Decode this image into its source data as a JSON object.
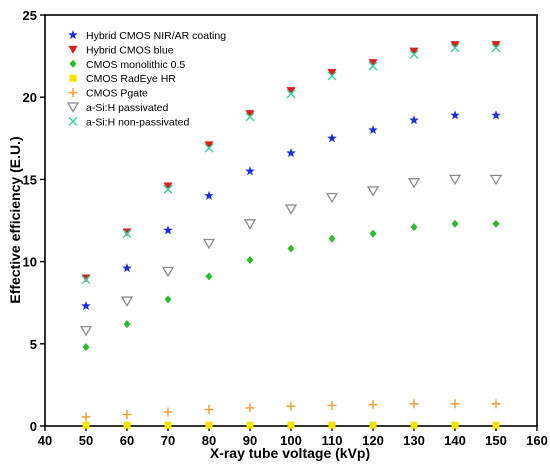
{
  "chart_data": {
    "type": "scatter",
    "title": "",
    "xlabel": "X-ray tube voltage (kVp)",
    "ylabel": "Effective efficiency (E.U.)",
    "xlim": [
      40,
      160
    ],
    "ylim": [
      0,
      25
    ],
    "xticks": [
      40,
      50,
      60,
      70,
      80,
      90,
      100,
      110,
      120,
      130,
      140,
      150,
      160
    ],
    "yticks": [
      0,
      5,
      10,
      15,
      20,
      25
    ],
    "grid": false,
    "legend_position": "top-left",
    "x": [
      50,
      60,
      70,
      80,
      90,
      100,
      110,
      120,
      130,
      140,
      150
    ],
    "series": [
      {
        "name": "Hybrid CMOS NIR/AR coating",
        "marker": "star",
        "color": "#1f2fd6",
        "values": [
          7.3,
          9.6,
          11.9,
          14.0,
          15.5,
          16.6,
          17.5,
          18.0,
          18.6,
          18.9,
          18.9
        ]
      },
      {
        "name": "Hybrid CMOS blue",
        "marker": "triangle-down",
        "color": "#d92020",
        "values": [
          9.0,
          11.8,
          14.6,
          17.1,
          19.0,
          20.4,
          21.5,
          22.1,
          22.8,
          23.2,
          23.2
        ]
      },
      {
        "name": "CMOS monolithic 0.5",
        "marker": "diamond",
        "color": "#2db82d",
        "values": [
          4.8,
          6.2,
          7.7,
          9.1,
          10.1,
          10.8,
          11.4,
          11.7,
          12.1,
          12.3,
          12.3
        ]
      },
      {
        "name": "CMOS RadEye HR",
        "marker": "square",
        "color": "#f2e400",
        "values": [
          0.05,
          0.05,
          0.05,
          0.05,
          0.05,
          0.05,
          0.05,
          0.05,
          0.05,
          0.05,
          0.05
        ]
      },
      {
        "name": "CMOS Pgate",
        "marker": "plus",
        "color": "#f0a040",
        "values": [
          0.55,
          0.7,
          0.85,
          1.0,
          1.1,
          1.2,
          1.25,
          1.3,
          1.35,
          1.35,
          1.35
        ]
      },
      {
        "name": "a-Si:H passivated",
        "marker": "triangle-down-open",
        "color": "#8c8c8c",
        "values": [
          5.8,
          7.6,
          9.4,
          11.1,
          12.3,
          13.2,
          13.9,
          14.3,
          14.8,
          15.0,
          15.0
        ]
      },
      {
        "name": "a-Si:H non-passivated",
        "marker": "x",
        "color": "#3fcfa8",
        "values": [
          8.9,
          11.7,
          14.4,
          16.9,
          18.8,
          20.2,
          21.3,
          21.9,
          22.6,
          23.0,
          23.0
        ]
      }
    ]
  }
}
